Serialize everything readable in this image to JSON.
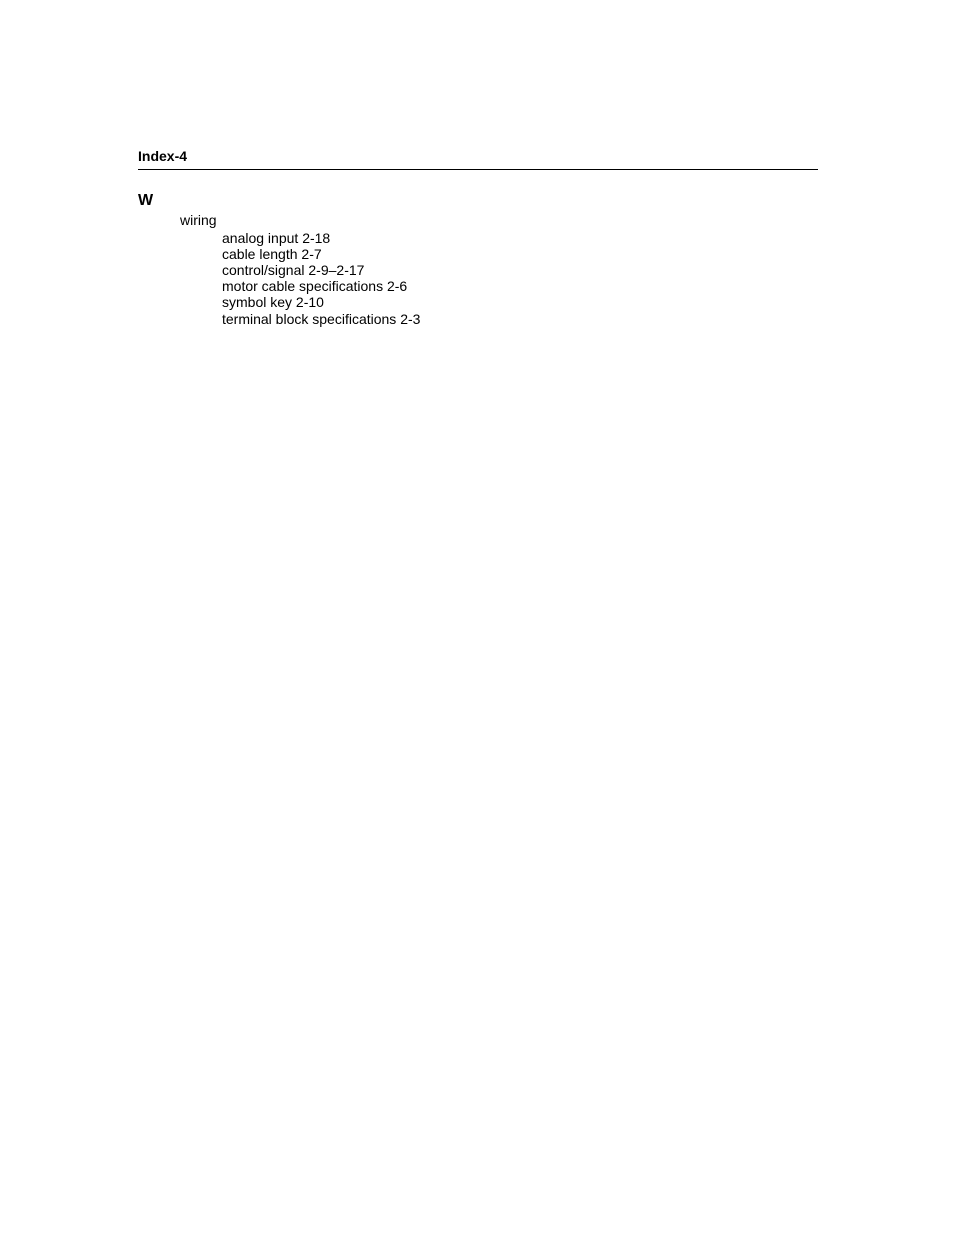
{
  "header": {
    "label": "Index-4"
  },
  "section": {
    "letter": "W",
    "topic": "wiring",
    "entries": [
      {
        "term": "analog input",
        "ref": "2-18"
      },
      {
        "term": "cable length",
        "ref": "2-7"
      },
      {
        "term": "control/signal",
        "ref": "2-9–2-17"
      },
      {
        "term": "motor cable specifications",
        "ref": "2-6"
      },
      {
        "term": "symbol key",
        "ref": "2-10"
      },
      {
        "term": "terminal block specifications",
        "ref": "2-3"
      }
    ]
  }
}
